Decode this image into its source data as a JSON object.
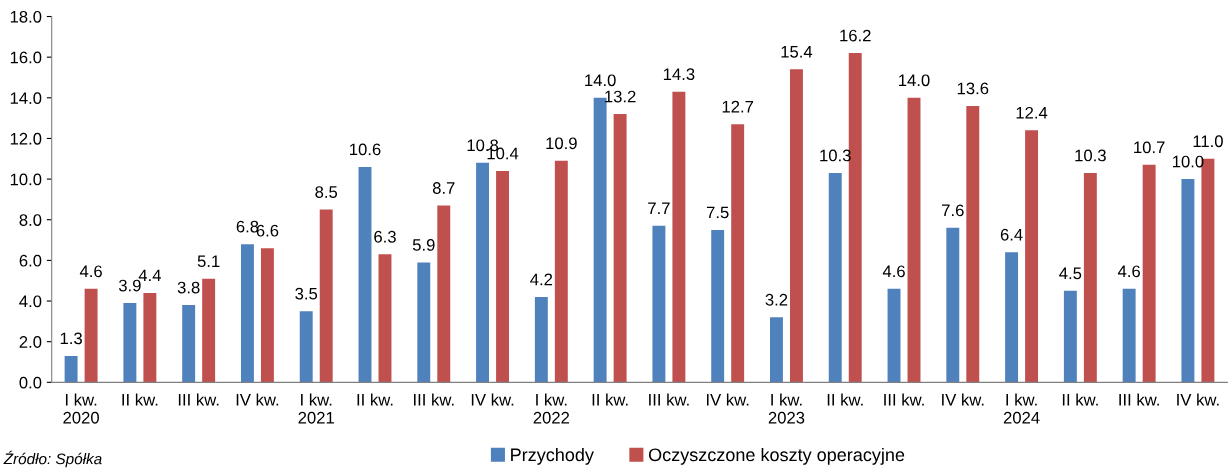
{
  "chart_data": {
    "type": "bar",
    "categories": [
      "I kw.\n2020",
      "II kw.",
      "III kw.",
      "IV kw.",
      "I kw.\n2021",
      "II kw.",
      "III kw.",
      "IV kw.",
      "I kw.\n2022",
      "II kw.",
      "III kw.",
      "IV kw.",
      "I kw.\n2023",
      "II kw.",
      "III kw.",
      "IV kw.",
      "I kw.\n2024",
      "II kw.",
      "III kw.",
      "IV kw."
    ],
    "series": [
      {
        "name": "Przychody",
        "color": "#4f81bd",
        "values": [
          1.3,
          3.9,
          3.8,
          6.8,
          3.5,
          10.6,
          5.9,
          10.8,
          4.2,
          14.0,
          7.7,
          7.5,
          3.2,
          10.3,
          4.6,
          7.6,
          6.4,
          4.5,
          4.6,
          10.0
        ],
        "value_labels": [
          "1.3",
          "3.9",
          "3.8",
          "6.8",
          "3.5",
          "10.6",
          "5.9",
          "10.8",
          "4.2",
          "14.0",
          "7.7",
          "7.5",
          "3.2",
          "10.3",
          "4.6",
          "7.6",
          "6.4",
          "4.5",
          "4.6",
          "10.0"
        ]
      },
      {
        "name": "Oczyszczone koszty operacyjne",
        "color": "#c0504d",
        "values": [
          4.6,
          4.4,
          5.1,
          6.6,
          8.5,
          6.3,
          8.7,
          10.4,
          10.9,
          13.2,
          14.3,
          12.7,
          15.4,
          16.2,
          14.0,
          13.6,
          12.4,
          10.3,
          10.7,
          11.0
        ],
        "value_labels": [
          "4.6",
          "4.4",
          "5.1",
          "6.6",
          "8.5",
          "6.3",
          "8.7",
          "10.4",
          "10.9",
          "13.2",
          "14.3",
          "12.7",
          "15.4",
          "16.2",
          "14.0",
          "13.6",
          "12.4",
          "10.3",
          "10.7",
          "11.0"
        ]
      }
    ],
    "ylim": [
      0,
      18
    ],
    "yticks": [
      {
        "value": 0,
        "label": "0.0"
      },
      {
        "value": 2,
        "label": "2.0"
      },
      {
        "value": 4,
        "label": "4.0"
      },
      {
        "value": 6,
        "label": "6.0"
      },
      {
        "value": 8,
        "label": "8.0"
      },
      {
        "value": 10,
        "label": "10.0"
      },
      {
        "value": 12,
        "label": "12.0"
      },
      {
        "value": 14,
        "label": "14.0"
      },
      {
        "value": 16,
        "label": "16.0"
      },
      {
        "value": 18,
        "label": "18.0"
      }
    ],
    "grid": false,
    "legend": "bottom",
    "annotations": [
      "Źródło: Spółka"
    ]
  }
}
